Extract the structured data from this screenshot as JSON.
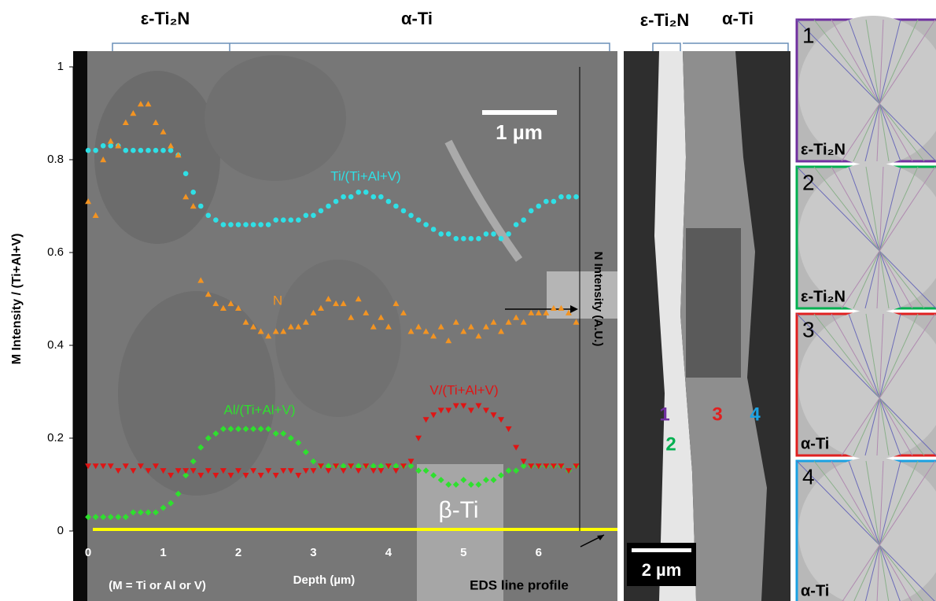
{
  "chart_data": {
    "type": "scatter",
    "x_label": "Depth (µm)",
    "y_label": "M Intensity / (Ti+Al+V)",
    "y2_label": "N Intensity (A.U.)",
    "x": [
      0,
      0.1,
      0.2,
      0.3,
      0.4,
      0.5,
      0.6,
      0.7,
      0.8,
      0.9,
      1,
      1.1,
      1.2,
      1.3,
      1.4,
      1.5,
      1.6,
      1.7,
      1.8,
      1.9,
      2,
      2.1,
      2.2,
      2.3,
      2.4,
      2.5,
      2.6,
      2.7,
      2.8,
      2.9,
      3,
      3.1,
      3.2,
      3.3,
      3.4,
      3.5,
      3.6,
      3.7,
      3.8,
      3.9,
      4,
      4.1,
      4.2,
      4.3,
      4.4,
      4.5,
      4.6,
      4.7,
      4.8,
      4.9,
      5,
      5.1,
      5.2,
      5.3,
      5.4,
      5.5,
      5.6,
      5.7,
      5.8,
      5.9,
      6,
      6.1,
      6.2,
      6.3,
      6.4,
      6.5
    ],
    "series": [
      {
        "name": "Ti/(Ti+Al+V)",
        "color": "#2fe0e6",
        "marker": "circle",
        "values": [
          0.82,
          0.82,
          0.83,
          0.83,
          0.83,
          0.82,
          0.82,
          0.82,
          0.82,
          0.82,
          0.82,
          0.82,
          0.81,
          0.77,
          0.73,
          0.7,
          0.68,
          0.67,
          0.66,
          0.66,
          0.66,
          0.66,
          0.66,
          0.66,
          0.66,
          0.67,
          0.67,
          0.67,
          0.67,
          0.68,
          0.68,
          0.69,
          0.7,
          0.71,
          0.72,
          0.72,
          0.73,
          0.73,
          0.72,
          0.72,
          0.71,
          0.7,
          0.69,
          0.68,
          0.67,
          0.66,
          0.65,
          0.64,
          0.64,
          0.63,
          0.63,
          0.63,
          0.63,
          0.64,
          0.64,
          0.63,
          0.64,
          0.66,
          0.67,
          0.69,
          0.7,
          0.71,
          0.71,
          0.72,
          0.72,
          0.72
        ]
      },
      {
        "name": "N",
        "color": "#f39422",
        "marker": "triangle-up",
        "axis": "y2",
        "values": [
          0.71,
          0.68,
          0.8,
          0.84,
          0.83,
          0.88,
          0.9,
          0.92,
          0.92,
          0.88,
          0.86,
          0.83,
          0.81,
          0.72,
          0.7,
          0.54,
          0.51,
          0.49,
          0.48,
          0.49,
          0.48,
          0.45,
          0.44,
          0.43,
          0.42,
          0.43,
          0.43,
          0.44,
          0.44,
          0.45,
          0.47,
          0.48,
          0.5,
          0.49,
          0.49,
          0.46,
          0.5,
          0.47,
          0.44,
          0.46,
          0.44,
          0.49,
          0.47,
          0.43,
          0.44,
          0.43,
          0.42,
          0.44,
          0.41,
          0.45,
          0.43,
          0.44,
          0.42,
          0.44,
          0.45,
          0.43,
          0.45,
          0.46,
          0.45,
          0.47,
          0.47,
          0.47,
          0.48,
          0.48,
          0.47,
          0.45
        ]
      },
      {
        "name": "Al/(Ti+Al+V)",
        "color": "#2ee02e",
        "marker": "diamond",
        "values": [
          0.03,
          0.03,
          0.03,
          0.03,
          0.03,
          0.03,
          0.04,
          0.04,
          0.04,
          0.04,
          0.05,
          0.06,
          0.08,
          0.12,
          0.15,
          0.18,
          0.2,
          0.21,
          0.22,
          0.22,
          0.22,
          0.22,
          0.22,
          0.22,
          0.22,
          0.21,
          0.21,
          0.2,
          0.19,
          0.17,
          0.15,
          0.14,
          0.14,
          0.14,
          0.14,
          0.14,
          0.14,
          0.14,
          0.14,
          0.14,
          0.14,
          0.14,
          0.14,
          0.14,
          0.13,
          0.13,
          0.12,
          0.11,
          0.1,
          0.1,
          0.11,
          0.1,
          0.1,
          0.11,
          0.11,
          0.12,
          0.13,
          0.13,
          0.14,
          0.14,
          0.14,
          0.14,
          0.14,
          0.14,
          0.13,
          0.14
        ]
      },
      {
        "name": "V/(Ti+Al+V)",
        "color": "#e01414",
        "marker": "triangle-down",
        "values": [
          0.14,
          0.14,
          0.14,
          0.14,
          0.13,
          0.14,
          0.13,
          0.14,
          0.13,
          0.14,
          0.13,
          0.12,
          0.13,
          0.13,
          0.13,
          0.12,
          0.13,
          0.12,
          0.13,
          0.12,
          0.13,
          0.12,
          0.13,
          0.12,
          0.13,
          0.12,
          0.13,
          0.13,
          0.12,
          0.13,
          0.13,
          0.14,
          0.13,
          0.14,
          0.13,
          0.14,
          0.13,
          0.14,
          0.13,
          0.13,
          0.14,
          0.13,
          0.14,
          0.15,
          0.2,
          0.24,
          0.25,
          0.26,
          0.26,
          0.27,
          0.27,
          0.26,
          0.27,
          0.26,
          0.25,
          0.24,
          0.22,
          0.18,
          0.15,
          0.14,
          0.14,
          0.14,
          0.14,
          0.14,
          0.13,
          0.14
        ]
      }
    ],
    "xlim": [
      -0.2,
      7.05
    ],
    "xticks": [
      0,
      1,
      2,
      3,
      4,
      5,
      6
    ],
    "ylim": [
      0,
      1
    ],
    "yticks": [
      0,
      0.2,
      0.4,
      0.6,
      0.8,
      1
    ],
    "y2lim": [
      0,
      1
    ],
    "phase_labels": [
      "ε-Ti₂N",
      "α-Ti"
    ],
    "scale_bar": "1 µm",
    "beta_label": "β-Ti",
    "note": "(M = Ti or Al or V)",
    "profile_label": "EDS line profile"
  },
  "cross_section": {
    "phase_labels": [
      "ε-Ti₂N",
      "α-Ti"
    ],
    "scale_bar": "2 µm",
    "points": [
      "1",
      "2",
      "3",
      "4"
    ]
  },
  "patterns": [
    {
      "number": "1",
      "phase": "ε-Ti₂N"
    },
    {
      "number": "2",
      "phase": "ε-Ti₂N"
    },
    {
      "number": "3",
      "phase": "α-Ti"
    },
    {
      "number": "4",
      "phase": "α-Ti"
    }
  ]
}
